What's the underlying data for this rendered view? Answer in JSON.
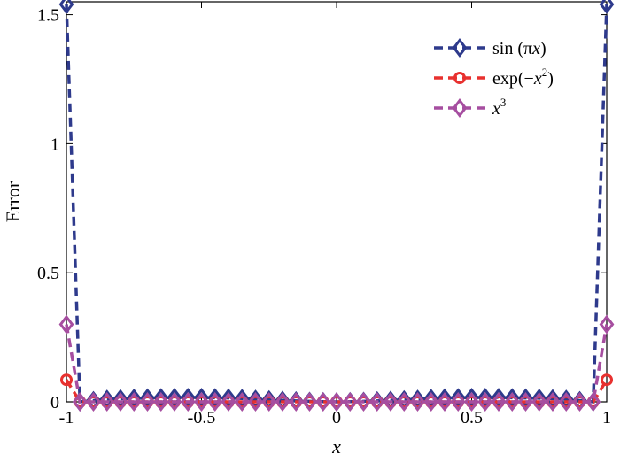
{
  "chart_data": {
    "type": "line",
    "xlabel": "x",
    "ylabel": "Error",
    "xlim": [
      -1,
      1
    ],
    "ylim": [
      0,
      1.55
    ],
    "xticks": [
      -1,
      -0.5,
      0,
      0.5,
      1
    ],
    "xtick_labels": [
      "-1",
      "-0.5",
      "0",
      "0.5",
      "1"
    ],
    "yticks": [
      0,
      0.5,
      1,
      1.5
    ],
    "ytick_labels": [
      "0",
      "0.5",
      "1",
      "1.5"
    ],
    "grid": false,
    "legend_position": "top-right",
    "series": [
      {
        "name": "sin (πx)",
        "legend_main": "sin (π",
        "legend_var": "x",
        "legend_tail": ")",
        "legend_sup": "",
        "color": "#2e3a8c",
        "marker": "diamond",
        "x": [
          -1,
          -0.95,
          -0.9,
          -0.85,
          -0.8,
          -0.75,
          -0.7,
          -0.65,
          -0.6,
          -0.55,
          -0.5,
          -0.45,
          -0.4,
          -0.35,
          -0.3,
          -0.25,
          -0.2,
          -0.15,
          -0.1,
          -0.05,
          0,
          0.05,
          0.1,
          0.15,
          0.2,
          0.25,
          0.3,
          0.35,
          0.4,
          0.45,
          0.5,
          0.55,
          0.6,
          0.65,
          0.7,
          0.75,
          0.8,
          0.85,
          0.9,
          0.95,
          1
        ],
        "y": [
          1.54,
          0,
          0.005,
          0.01,
          0.012,
          0.014,
          0.015,
          0.016,
          0.017,
          0.017,
          0.017,
          0.016,
          0.015,
          0.013,
          0.01,
          0.008,
          0.006,
          0.004,
          0.002,
          0.001,
          0,
          0.001,
          0.002,
          0.004,
          0.006,
          0.008,
          0.01,
          0.013,
          0.015,
          0.016,
          0.017,
          0.017,
          0.017,
          0.016,
          0.015,
          0.014,
          0.012,
          0.01,
          0.005,
          0,
          1.54
        ]
      },
      {
        "name": "exp(−x²)",
        "legend_main": "exp(−",
        "legend_var": "x",
        "legend_tail": ")",
        "legend_sup": "2",
        "color": "#e8312f",
        "marker": "circle",
        "x": [
          -1,
          -0.95,
          -0.9,
          -0.85,
          -0.8,
          -0.75,
          -0.7,
          -0.65,
          -0.6,
          -0.55,
          -0.5,
          -0.45,
          -0.4,
          -0.35,
          -0.3,
          -0.25,
          -0.2,
          -0.15,
          -0.1,
          -0.05,
          0,
          0.05,
          0.1,
          0.15,
          0.2,
          0.25,
          0.3,
          0.35,
          0.4,
          0.45,
          0.5,
          0.55,
          0.6,
          0.65,
          0.7,
          0.75,
          0.8,
          0.85,
          0.9,
          0.95,
          1
        ],
        "y": [
          0.085,
          0,
          0,
          0,
          0,
          0,
          0,
          0,
          0,
          0,
          0,
          0,
          0,
          0,
          0,
          0,
          0,
          0,
          0,
          0,
          0,
          0,
          0,
          0,
          0,
          0,
          0,
          0,
          0,
          0,
          0,
          0,
          0,
          0,
          0,
          0,
          0,
          0,
          0,
          0,
          0.085
        ]
      },
      {
        "name": "x³",
        "legend_main": "",
        "legend_var": "x",
        "legend_tail": "",
        "legend_sup": "3",
        "color": "#a64ea0",
        "marker": "diamond",
        "x": [
          -1,
          -0.95,
          -0.9,
          -0.85,
          -0.8,
          -0.75,
          -0.7,
          -0.65,
          -0.6,
          -0.55,
          -0.5,
          -0.45,
          -0.4,
          -0.35,
          -0.3,
          -0.25,
          -0.2,
          -0.15,
          -0.1,
          -0.05,
          0,
          0.05,
          0.1,
          0.15,
          0.2,
          0.25,
          0.3,
          0.35,
          0.4,
          0.45,
          0.5,
          0.55,
          0.6,
          0.65,
          0.7,
          0.75,
          0.8,
          0.85,
          0.9,
          0.95,
          1
        ],
        "y": [
          0.3,
          0,
          0,
          0,
          0,
          0,
          0,
          0,
          0,
          0,
          0,
          0,
          0,
          0,
          0,
          0,
          0,
          0,
          0,
          0,
          0,
          0,
          0,
          0,
          0,
          0,
          0,
          0,
          0,
          0,
          0,
          0,
          0,
          0,
          0,
          0,
          0,
          0,
          0,
          0,
          0.3
        ]
      }
    ]
  }
}
